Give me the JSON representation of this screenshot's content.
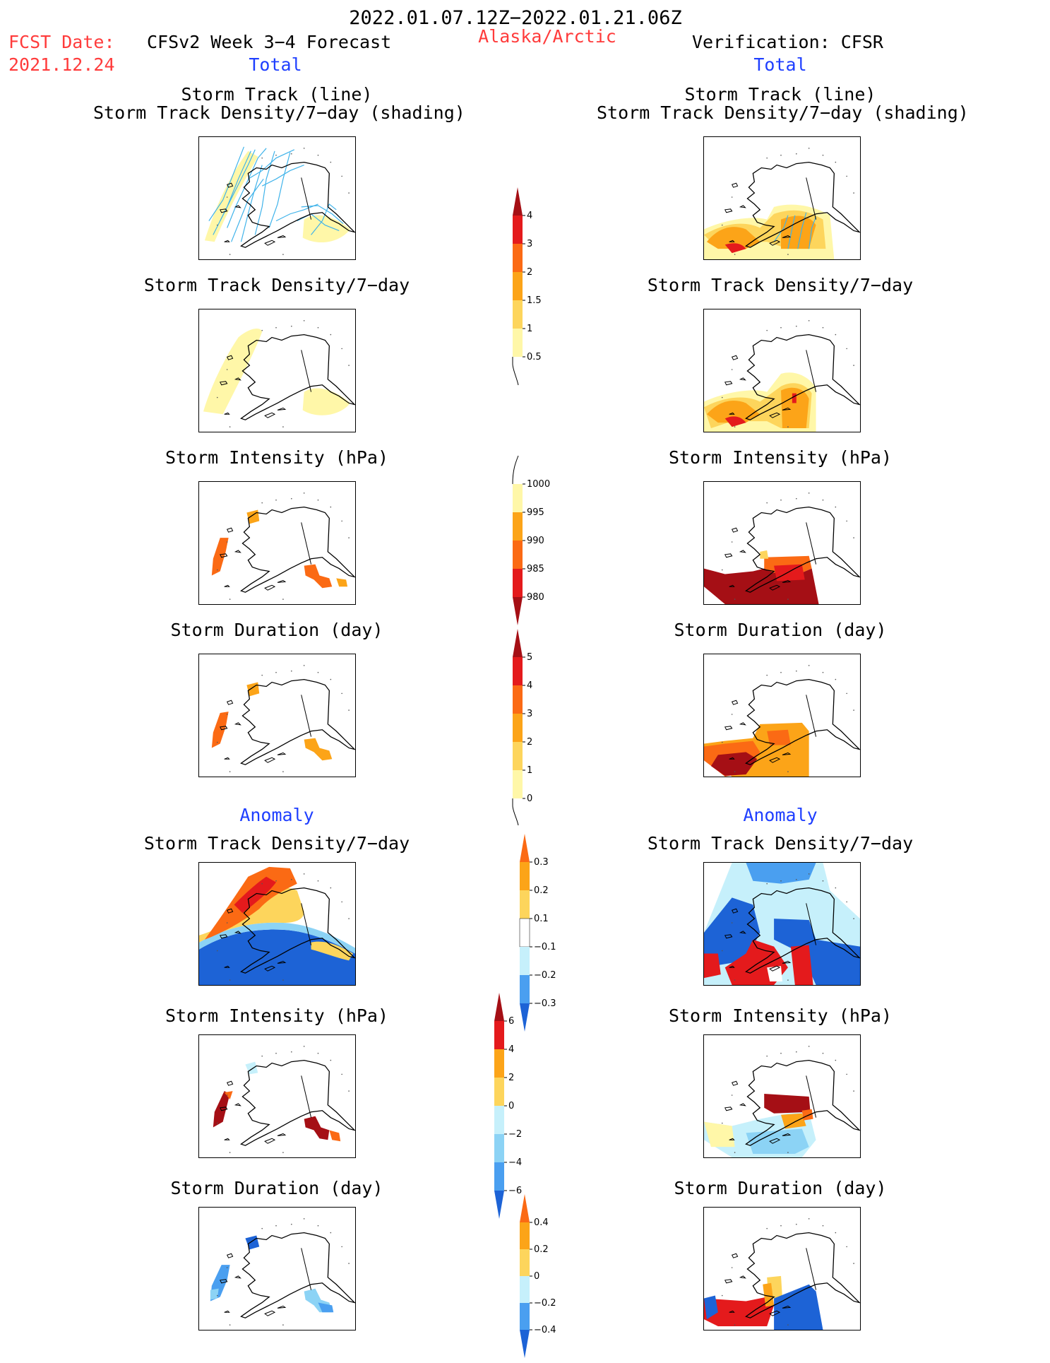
{
  "header": {
    "period": "2022.01.07.12Z−2022.01.21.06Z",
    "region": "Alaska/Arctic",
    "fcst_label": "FCST Date:",
    "fcst_date": "2021.12.24",
    "left_title": "CFSv2 Week 3−4 Forecast",
    "left_sub": "Total",
    "right_title": "Verification: CFSR",
    "right_sub": "Total"
  },
  "sections": {
    "anomaly_left": "Anomaly",
    "anomaly_right": "Anomaly"
  },
  "panels": {
    "t_track_1": "Storm Track (line)",
    "t_track_2": "Storm Track Density/7−day (shading)",
    "t_density": "Storm Track Density/7−day",
    "t_intensity": "Storm Intensity (hPa)",
    "t_duration": "Storm Duration (day)"
  },
  "colorbars": {
    "density_total": {
      "ticks": [
        "0.5",
        "1",
        "1.5",
        "2",
        "3",
        "4"
      ]
    },
    "intensity_total": {
      "ticks": [
        "1000",
        "995",
        "990",
        "985",
        "980"
      ]
    },
    "duration_total": {
      "ticks": [
        "0",
        "1",
        "2",
        "3",
        "4",
        "5"
      ]
    },
    "density_anom": {
      "ticks": [
        "0.3",
        "0.2",
        "0.1",
        "−0.1",
        "−0.2",
        "−0.3"
      ]
    },
    "intensity_anom": {
      "ticks": [
        "6",
        "4",
        "2",
        "0",
        "−2",
        "−4",
        "−6"
      ]
    },
    "duration_anom": {
      "ticks": [
        "0.4",
        "0.2",
        "0",
        "−0.2",
        "−0.4"
      ]
    }
  },
  "colors": {
    "red_text": "#ff3b3b",
    "blue_text": "#1f3fff",
    "track_line": "#3fb3ea",
    "warm": [
      "#fff7a8",
      "#fdd55c",
      "#fca418",
      "#fb6a14",
      "#e41a1c",
      "#a50f15"
    ],
    "cool": [
      "#c6f0fb",
      "#8cd3f5",
      "#4a9ff0",
      "#1d63d6"
    ]
  }
}
